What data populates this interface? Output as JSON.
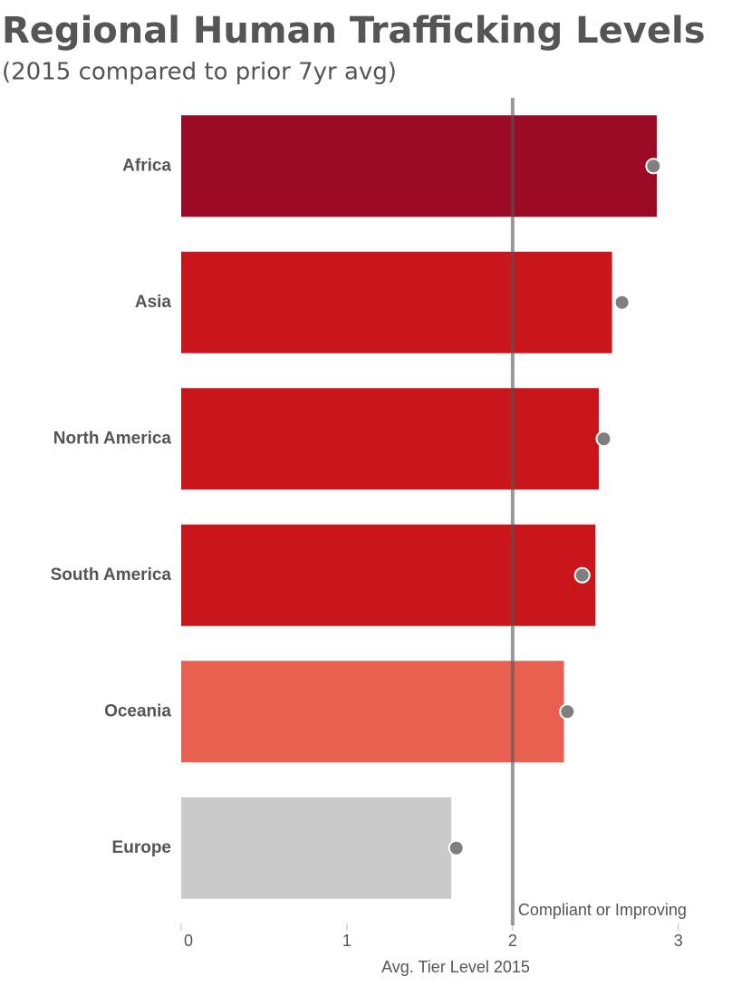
{
  "chart_data": {
    "type": "bar",
    "orientation": "horizontal",
    "title": "Regional Human Trafficking Levels",
    "subtitle": "(2015 compared to prior 7yr avg)",
    "x_label": "Avg. Tier Level 2015",
    "categories": [
      "Africa",
      "Asia",
      "North America",
      "South America",
      "Oceania",
      "Europe"
    ],
    "series": [
      {
        "values": [
          2.87,
          2.6,
          2.52,
          2.5,
          2.31,
          1.63
        ],
        "colors": [
          "#9b0a24",
          "#c8161a",
          "#c8161a",
          "#c8161a",
          "#e86050",
          "#cacaca"
        ]
      },
      {
        "type": "dot",
        "values": [
          2.85,
          2.66,
          2.55,
          2.42,
          2.33,
          1.66
        ],
        "color": "#7f7f7f"
      }
    ],
    "xlim": [
      0,
      3.28
    ],
    "xticks": [
      0,
      1,
      2,
      3
    ],
    "reference_line": {
      "value": 2,
      "label": "Compliant or Improving",
      "color": "#555555"
    }
  }
}
